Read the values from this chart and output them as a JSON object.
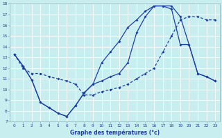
{
  "title": "Graphe des températures (°c)",
  "bg_color": "#c8eef0",
  "line_color": "#1c3fa0",
  "grid_color": "#ffffff",
  "xlim": [
    -0.5,
    23.5
  ],
  "ylim": [
    7,
    18
  ],
  "xticks": [
    0,
    1,
    2,
    3,
    4,
    5,
    6,
    7,
    8,
    9,
    10,
    11,
    12,
    13,
    14,
    15,
    16,
    17,
    18,
    19,
    20,
    21,
    22,
    23
  ],
  "yticks": [
    7,
    8,
    9,
    10,
    11,
    12,
    13,
    14,
    15,
    16,
    17,
    18
  ],
  "series1_x": [
    0,
    1,
    2,
    3,
    4,
    5,
    6,
    7,
    8,
    9,
    10,
    11,
    12,
    13,
    14,
    15,
    16,
    17,
    18,
    19,
    20,
    21,
    22,
    23
  ],
  "series1_y": [
    13.3,
    12.2,
    10.9,
    8.8,
    8.3,
    7.8,
    7.5,
    8.5,
    9.7,
    10.5,
    10.8,
    11.2,
    11.5,
    12.5,
    15.3,
    16.8,
    17.8,
    17.8,
    17.5,
    14.2,
    14.2,
    11.5,
    11.2,
    10.8
  ],
  "series2_x": [
    0,
    1,
    2,
    3,
    4,
    5,
    6,
    7,
    8,
    9,
    10,
    11,
    12,
    13,
    14,
    15,
    16,
    17,
    18,
    19,
    20,
    21,
    22,
    23
  ],
  "series2_y": [
    13.3,
    12.2,
    10.9,
    8.8,
    8.3,
    7.8,
    7.5,
    8.5,
    9.7,
    10.5,
    12.5,
    13.5,
    14.5,
    15.8,
    16.5,
    17.3,
    17.8,
    17.8,
    17.8,
    16.8,
    14.2,
    11.5,
    11.2,
    10.8
  ],
  "series3_x": [
    0,
    1,
    2,
    3,
    4,
    5,
    6,
    7,
    8,
    9,
    10,
    11,
    12,
    13,
    14,
    15,
    16,
    17,
    18,
    19,
    20,
    21,
    22,
    23
  ],
  "series3_y": [
    13.3,
    12.0,
    11.5,
    11.5,
    11.2,
    11.0,
    10.8,
    10.5,
    9.5,
    9.5,
    9.8,
    10.0,
    10.2,
    10.5,
    11.0,
    11.5,
    12.0,
    13.5,
    15.0,
    16.5,
    16.8,
    16.8,
    16.5,
    16.5
  ]
}
